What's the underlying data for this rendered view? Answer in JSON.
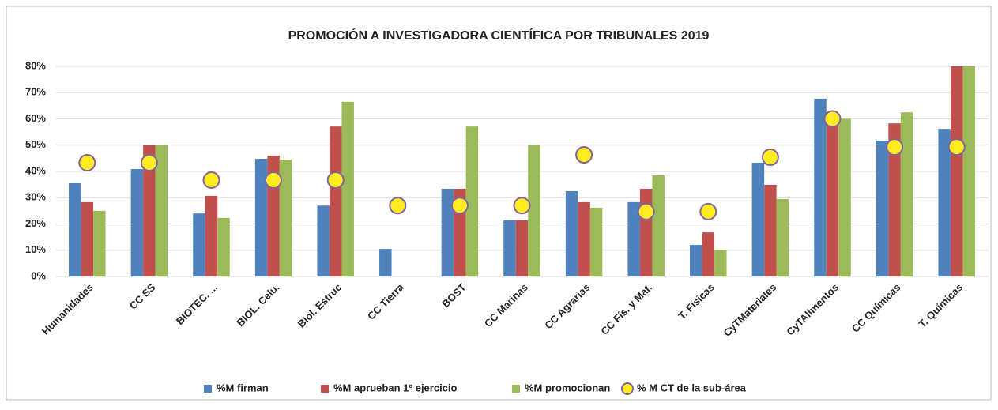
{
  "chart_data": {
    "type": "bar",
    "title": "PROMOCIÓN A INVESTIGADORA CIENTÍFICA POR TRIBUNALES 2019",
    "categories": [
      "Humanidades",
      "CC SS",
      "BIOTEC. ...",
      "BIOL. Celu.",
      "Biol. Estruc",
      "CC Tierra",
      "BOST",
      "CC Marinas",
      "CC Agrarias",
      "CC Fís. y Mat.",
      "T. Físicas",
      "CyTMateriales",
      "CyTAlimentos",
      "CC Químicas",
      "T. Químicas"
    ],
    "series": [
      {
        "name": "%M firman",
        "type": "bar",
        "color": "#4f81bd",
        "values": [
          35.5,
          40.9,
          24,
          44.8,
          27,
          10.5,
          33.4,
          21.4,
          32.5,
          28.3,
          12,
          43.3,
          67.7,
          51.7,
          56.2
        ]
      },
      {
        "name": "%M aprueban 1º ejercicio",
        "type": "bar",
        "color": "#c0504d",
        "values": [
          28.3,
          50,
          30.7,
          46,
          57.1,
          0,
          33.4,
          21.4,
          28.3,
          33.4,
          16.8,
          34.9,
          60,
          58.3,
          80
        ]
      },
      {
        "name": "%M promocionan",
        "type": "bar",
        "color": "#9bbb59",
        "values": [
          25,
          50,
          22.3,
          44.5,
          66.5,
          0,
          57.1,
          50,
          26.2,
          38.5,
          10,
          29.5,
          60,
          62.5,
          80
        ]
      },
      {
        "name": "% M CT de la sub-área",
        "type": "scatter",
        "color": "#ffeb1f",
        "edge": "#8064a2",
        "values": [
          43.3,
          43.3,
          36.7,
          36.7,
          36.7,
          27,
          27,
          27,
          46.3,
          24.7,
          24.7,
          45.4,
          60,
          49.3,
          49.3
        ]
      }
    ],
    "ylim": [
      0,
      80
    ],
    "yticks": [
      {
        "value": 0,
        "label": "0%"
      },
      {
        "value": 10,
        "label": "10%"
      },
      {
        "value": 20,
        "label": "20%"
      },
      {
        "value": 30,
        "label": "30%"
      },
      {
        "value": 40,
        "label": "40%"
      },
      {
        "value": 50,
        "label": "50%"
      },
      {
        "value": 60,
        "label": "60%"
      },
      {
        "value": 70,
        "label": "70%"
      },
      {
        "value": 80,
        "label": "80%"
      }
    ],
    "grid": true,
    "legend": "bottom"
  }
}
